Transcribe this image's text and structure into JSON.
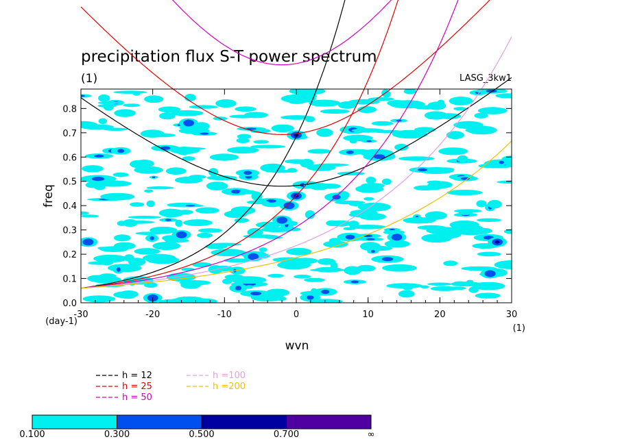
{
  "chart_data": {
    "type": "heatmap",
    "title": "precipitation flux S-T power spectrum",
    "subtitle": "(1)",
    "tag": "LASG_3kw1",
    "xlabel": "wvn",
    "ylabel": "freq",
    "x_unit": "(1)",
    "y_unit": "(day-1)",
    "xlim": [
      -30,
      30
    ],
    "ylim": [
      0,
      0.88
    ],
    "x_ticks": [
      -30,
      -20,
      -10,
      0,
      10,
      20,
      30
    ],
    "x_tick_labels": [
      "-30",
      "-20",
      "-10",
      "0",
      "10",
      "20",
      "30"
    ],
    "y_ticks": [
      0.0,
      0.1,
      0.2,
      0.3,
      0.4,
      0.5,
      0.6,
      0.7,
      0.8
    ],
    "y_tick_labels": [
      "0.0",
      "0.1",
      "0.2",
      "0.3",
      "0.4",
      "0.5",
      "0.6",
      "0.7",
      "0.8"
    ],
    "dispersion_curves": [
      {
        "name": "h = 12",
        "h": 12,
        "color": "#000000"
      },
      {
        "name": "h = 25",
        "h": 25,
        "color": "#e00000"
      },
      {
        "name": "h = 50",
        "h": 50,
        "color": "#d000c0"
      },
      {
        "name": "h =100",
        "h": 100,
        "color": "#e0a0e0"
      },
      {
        "name": "h =200",
        "h": 200,
        "color": "#f0c000"
      }
    ],
    "color_levels": [
      0.1,
      0.3,
      0.5,
      0.7
    ],
    "colorbar_labels": [
      "0.100",
      "0.300",
      "0.500",
      "0.700",
      "∞"
    ],
    "fill_colors": [
      "#00f0f0",
      "#0050f0",
      "#0000a0",
      "#5000a0"
    ],
    "hotspots": [
      {
        "wvn": 0,
        "freq": 0.69,
        "level": 2
      },
      {
        "wvn": 0,
        "freq": 0.44,
        "level": 2
      },
      {
        "wvn": -1,
        "freq": 0.4,
        "level": 1
      },
      {
        "wvn": -2,
        "freq": 0.34,
        "level": 1
      },
      {
        "wvn": -6,
        "freq": 0.19,
        "level": 1
      },
      {
        "wvn": -20,
        "freq": 0.02,
        "level": 1
      },
      {
        "wvn": 14,
        "freq": 0.27,
        "level": 1
      },
      {
        "wvn": 28,
        "freq": 0.25,
        "level": 2
      },
      {
        "wvn": 27,
        "freq": 0.12,
        "level": 1
      },
      {
        "wvn": -15,
        "freq": 0.74,
        "level": 1
      },
      {
        "wvn": -16,
        "freq": 0.28,
        "level": 1
      },
      {
        "wvn": -29,
        "freq": 0.25,
        "level": 1
      }
    ]
  }
}
